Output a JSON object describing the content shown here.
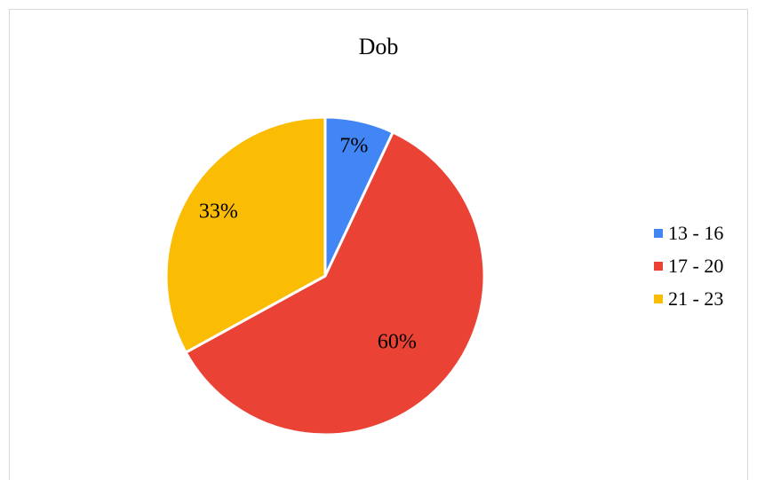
{
  "chart_data": {
    "type": "pie",
    "title": "Dob",
    "categories": [
      "13 - 16",
      "17 - 20",
      "21 - 23"
    ],
    "values": [
      7,
      60,
      33
    ],
    "data_labels": [
      "7%",
      "60%",
      "33%"
    ],
    "colors": [
      "#4285F4",
      "#EA4335",
      "#FBBC04"
    ],
    "legend_position": "right"
  }
}
